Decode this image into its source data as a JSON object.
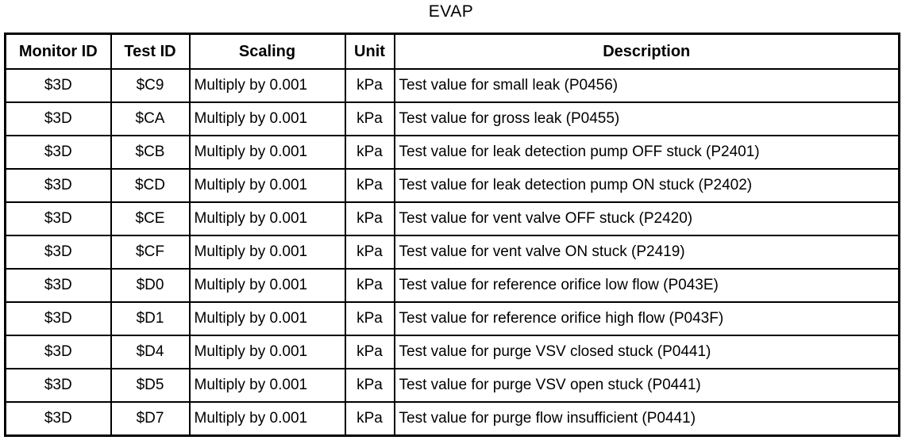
{
  "title": "EVAP",
  "colors": {
    "background": "#ffffff",
    "border": "#000000",
    "text": "#000000"
  },
  "table": {
    "columns": [
      "Monitor ID",
      "Test ID",
      "Scaling",
      "Unit",
      "Description"
    ],
    "rows": [
      [
        "$3D",
        "$C9",
        "Multiply by 0.001",
        "kPa",
        "Test value for small leak (P0456)"
      ],
      [
        "$3D",
        "$CA",
        "Multiply by 0.001",
        "kPa",
        "Test value for gross leak (P0455)"
      ],
      [
        "$3D",
        "$CB",
        "Multiply by 0.001",
        "kPa",
        "Test value for leak detection pump OFF stuck (P2401)"
      ],
      [
        "$3D",
        "$CD",
        "Multiply by 0.001",
        "kPa",
        "Test value for leak detection pump ON stuck (P2402)"
      ],
      [
        "$3D",
        "$CE",
        "Multiply by 0.001",
        "kPa",
        "Test value for vent valve OFF stuck (P2420)"
      ],
      [
        "$3D",
        "$CF",
        "Multiply by 0.001",
        "kPa",
        "Test value for vent valve ON stuck (P2419)"
      ],
      [
        "$3D",
        "$D0",
        "Multiply by 0.001",
        "kPa",
        "Test value for reference orifice low flow (P043E)"
      ],
      [
        "$3D",
        "$D1",
        "Multiply by 0.001",
        "kPa",
        "Test value for reference orifice high flow (P043F)"
      ],
      [
        "$3D",
        "$D4",
        "Multiply by 0.001",
        "kPa",
        "Test value for purge VSV closed stuck (P0441)"
      ],
      [
        "$3D",
        "$D5",
        "Multiply by 0.001",
        "kPa",
        "Test value for purge VSV open stuck (P0441)"
      ],
      [
        "$3D",
        "$D7",
        "Multiply by 0.001",
        "kPa",
        "Test value for purge flow insufficient (P0441)"
      ]
    ]
  }
}
